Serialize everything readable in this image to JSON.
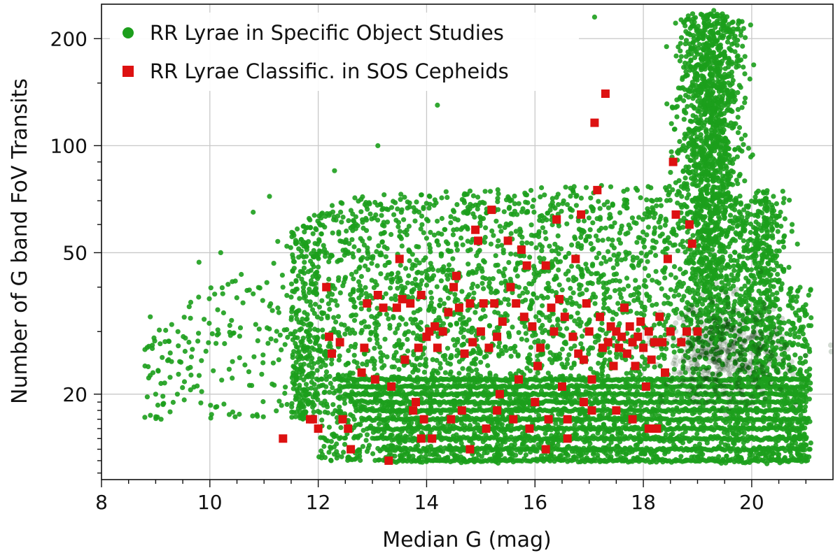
{
  "chart_data": {
    "type": "scatter",
    "xlabel": "Median G (mag)",
    "ylabel": "Number of G band FoV Transits",
    "xlim": [
      8,
      21.5
    ],
    "ylim": [
      11.5,
      250
    ],
    "yscale": "log",
    "x_ticks": [
      "8",
      "10",
      "12",
      "14",
      "16",
      "18",
      "20"
    ],
    "y_ticks": [
      "20",
      "50",
      "100",
      "200"
    ],
    "grid": true,
    "legend_position": "top-left",
    "series": [
      {
        "name": "RR Lyrae in Specific Object Studies",
        "marker": "circle",
        "color": "#1c9e1c",
        "density_color": "#0a3a0a",
        "x_range": [
          8.7,
          21.2
        ],
        "y_range": [
          13,
          240
        ],
        "note_points": [
          [
            8.9,
            33
          ],
          [
            9.0,
            20
          ],
          [
            9.1,
            17
          ],
          [
            9.4,
            20
          ],
          [
            9.8,
            47
          ],
          [
            10.2,
            50
          ],
          [
            10.8,
            65
          ],
          [
            11.1,
            72
          ],
          [
            12.3,
            85
          ],
          [
            13.1,
            100
          ],
          [
            14.2,
            130
          ],
          [
            17.1,
            230
          ],
          [
            19.3,
            240
          ],
          [
            20.2,
            70
          ]
        ]
      },
      {
        "name": "RR Lyrae Classific. in SOS Cepheids",
        "marker": "square",
        "color": "#dd1111",
        "points": [
          [
            11.35,
            15
          ],
          [
            11.85,
            17
          ],
          [
            11.9,
            17
          ],
          [
            12.0,
            16
          ],
          [
            12.15,
            40
          ],
          [
            12.2,
            29
          ],
          [
            12.25,
            26
          ],
          [
            12.4,
            28
          ],
          [
            12.45,
            17
          ],
          [
            12.55,
            16
          ],
          [
            12.6,
            14
          ],
          [
            12.8,
            23
          ],
          [
            12.85,
            27
          ],
          [
            12.9,
            36
          ],
          [
            13.05,
            22
          ],
          [
            13.1,
            38
          ],
          [
            13.2,
            35
          ],
          [
            13.3,
            13
          ],
          [
            13.35,
            21
          ],
          [
            13.45,
            35
          ],
          [
            13.5,
            48
          ],
          [
            13.55,
            37
          ],
          [
            13.6,
            25
          ],
          [
            13.7,
            36
          ],
          [
            13.75,
            18
          ],
          [
            13.8,
            19
          ],
          [
            13.85,
            27
          ],
          [
            13.9,
            38
          ],
          [
            13.95,
            17
          ],
          [
            14.0,
            29
          ],
          [
            14.05,
            30
          ],
          [
            14.1,
            15
          ],
          [
            14.15,
            31
          ],
          [
            14.2,
            27
          ],
          [
            14.3,
            30
          ],
          [
            14.4,
            34
          ],
          [
            14.45,
            17
          ],
          [
            14.5,
            40
          ],
          [
            14.55,
            43
          ],
          [
            14.6,
            35
          ],
          [
            14.65,
            18
          ],
          [
            14.7,
            26
          ],
          [
            14.8,
            36
          ],
          [
            14.85,
            28
          ],
          [
            14.9,
            58
          ],
          [
            14.95,
            54
          ],
          [
            15.0,
            30
          ],
          [
            15.05,
            36
          ],
          [
            15.1,
            16
          ],
          [
            15.15,
            27
          ],
          [
            15.2,
            66
          ],
          [
            15.25,
            36
          ],
          [
            15.3,
            29
          ],
          [
            15.35,
            20
          ],
          [
            15.4,
            32
          ],
          [
            15.5,
            54
          ],
          [
            15.55,
            40
          ],
          [
            15.6,
            17
          ],
          [
            15.65,
            36
          ],
          [
            15.7,
            22
          ],
          [
            15.75,
            51
          ],
          [
            15.8,
            33
          ],
          [
            15.85,
            46
          ],
          [
            15.9,
            16
          ],
          [
            15.95,
            31
          ],
          [
            16.0,
            19
          ],
          [
            16.05,
            24
          ],
          [
            16.1,
            27
          ],
          [
            16.2,
            46
          ],
          [
            16.25,
            17
          ],
          [
            16.3,
            35
          ],
          [
            16.35,
            30
          ],
          [
            16.4,
            62
          ],
          [
            16.45,
            37
          ],
          [
            16.5,
            21
          ],
          [
            16.55,
            33
          ],
          [
            16.6,
            17
          ],
          [
            16.7,
            29
          ],
          [
            16.75,
            48
          ],
          [
            16.8,
            26
          ],
          [
            16.85,
            64
          ],
          [
            16.9,
            25
          ],
          [
            16.95,
            36
          ],
          [
            17.0,
            30
          ],
          [
            17.05,
            22
          ],
          [
            17.1,
            116
          ],
          [
            17.15,
            75
          ],
          [
            17.2,
            33
          ],
          [
            17.25,
            27
          ],
          [
            17.3,
            140
          ],
          [
            17.35,
            28
          ],
          [
            17.4,
            31
          ],
          [
            17.45,
            24
          ],
          [
            17.5,
            30
          ],
          [
            17.55,
            27
          ],
          [
            17.6,
            29
          ],
          [
            17.65,
            35
          ],
          [
            17.7,
            26
          ],
          [
            17.75,
            31
          ],
          [
            17.8,
            28
          ],
          [
            17.85,
            24
          ],
          [
            17.9,
            29
          ],
          [
            17.95,
            32
          ],
          [
            18.0,
            27
          ],
          [
            18.05,
            21
          ],
          [
            18.1,
            30
          ],
          [
            18.15,
            25
          ],
          [
            18.2,
            28
          ],
          [
            18.25,
            16
          ],
          [
            18.3,
            33
          ],
          [
            18.35,
            28
          ],
          [
            18.4,
            23
          ],
          [
            18.45,
            48
          ],
          [
            18.5,
            30
          ],
          [
            18.55,
            90
          ],
          [
            18.6,
            64
          ],
          [
            18.7,
            28
          ],
          [
            18.8,
            30
          ],
          [
            18.85,
            60
          ],
          [
            18.9,
            53
          ],
          [
            19.0,
            30
          ],
          [
            16.6,
            15
          ],
          [
            16.9,
            19
          ],
          [
            17.05,
            18
          ],
          [
            17.5,
            18
          ],
          [
            17.8,
            17
          ],
          [
            18.1,
            16
          ],
          [
            15.3,
            18
          ],
          [
            14.8,
            14
          ],
          [
            13.9,
            15
          ],
          [
            16.2,
            14
          ]
        ]
      }
    ]
  }
}
